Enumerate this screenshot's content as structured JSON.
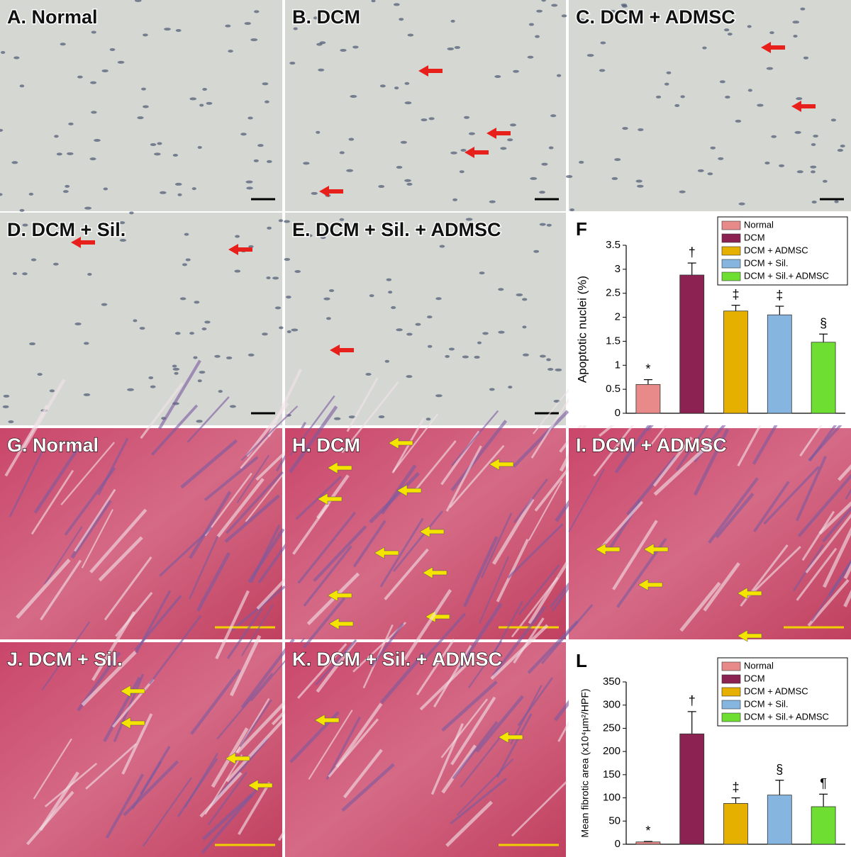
{
  "panels": [
    {
      "label": "A. Normal"
    },
    {
      "label": "B. DCM"
    },
    {
      "label": "C. DCM + ADMSC"
    },
    {
      "label": "D. DCM + Sil."
    },
    {
      "label": "E. DCM + Sil. + ADMSC"
    },
    {
      "label": "G. Normal"
    },
    {
      "label": "H. DCM"
    },
    {
      "label": "I. DCM + ADMSC"
    },
    {
      "label": "J. DCM + Sil."
    },
    {
      "label": "K. DCM + Sil. + ADMSC"
    }
  ],
  "chart_data": [
    {
      "type": "bar",
      "title": "F",
      "ylabel": "Apoptotic nuclei (%)",
      "categories": [
        "Normal",
        "DCM",
        "DCM + ADMSC",
        "DCM + Sil.",
        "DCM + Sil.+ ADMSC"
      ],
      "colors": [
        "#e88a8a",
        "#8b2252",
        "#e6b000",
        "#86b6e0",
        "#6ede32"
      ],
      "values": [
        0.6,
        2.88,
        2.13,
        2.05,
        1.48
      ],
      "errors": [
        0.1,
        0.25,
        0.12,
        0.18,
        0.17
      ],
      "annotations": [
        "*",
        "†",
        "‡",
        "‡",
        "§"
      ],
      "ylim": [
        0,
        3.5
      ],
      "yticks": [
        0,
        0.5,
        1,
        1.5,
        2,
        2.5,
        3,
        3.5
      ],
      "legend": "top-right"
    },
    {
      "type": "bar",
      "title": "L",
      "ylabel": "Mean fibrotic area (x10⁴µm²/HPF)",
      "categories": [
        "Normal",
        "DCM",
        "DCM + ADMSC",
        "DCM + Sil.",
        "DCM + Sil.+ ADMSC"
      ],
      "colors": [
        "#e88a8a",
        "#8b2252",
        "#e6b000",
        "#86b6e0",
        "#6ede32"
      ],
      "values": [
        5,
        238,
        88,
        106,
        81
      ],
      "errors": [
        1,
        48,
        12,
        32,
        27
      ],
      "annotations": [
        "*",
        "†",
        "‡",
        "§",
        "¶"
      ],
      "ylim": [
        0,
        350
      ],
      "yticks": [
        0,
        50,
        100,
        150,
        200,
        250,
        300,
        350
      ],
      "legend": "top-right"
    }
  ]
}
